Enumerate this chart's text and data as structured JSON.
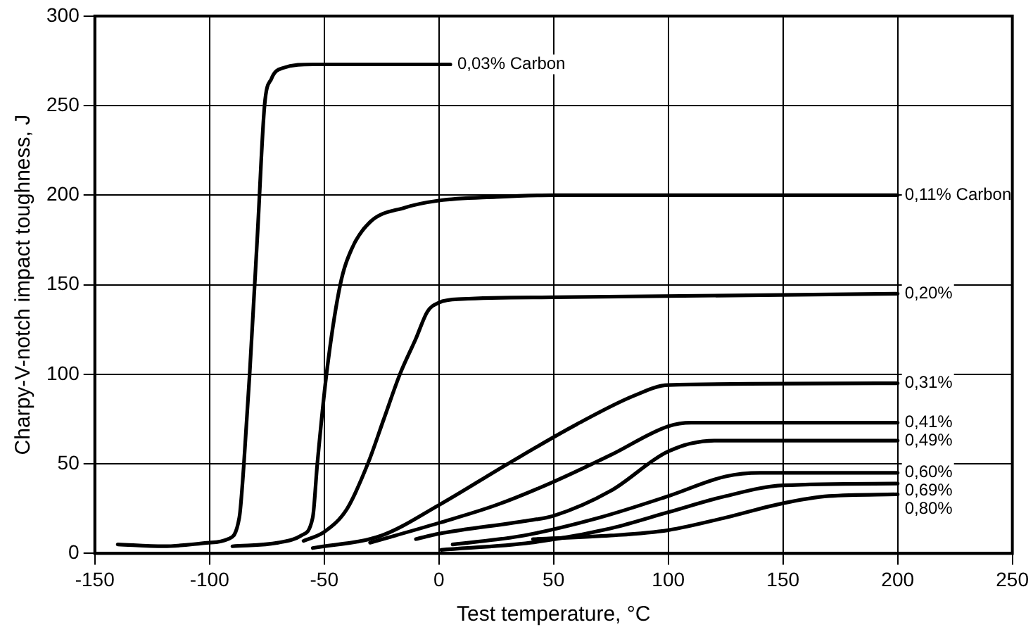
{
  "chart_data": {
    "type": "line",
    "xlabel": "Test temperature, °C",
    "ylabel": "Charpy-V-notch impact toughness, J",
    "xlim": [
      -150,
      250
    ],
    "xticks": [
      -150,
      -100,
      -50,
      0,
      50,
      100,
      150,
      200,
      250
    ],
    "ylim": [
      0,
      300
    ],
    "yticks": [
      0,
      50,
      100,
      150,
      200,
      250,
      300
    ],
    "grid": true,
    "legend": false,
    "marker": "none",
    "line_style": "solid",
    "series": [
      {
        "name": "0,03% Carbon",
        "color": "#000000",
        "x": [
          -140,
          -120,
          -100,
          -92,
          -87,
          -85,
          -82.5,
          -79,
          -76,
          -73,
          -68,
          -55,
          5
        ],
        "values": [
          5,
          4,
          6,
          8,
          20,
          50,
          100,
          180,
          250,
          265,
          271,
          273,
          273
        ]
      },
      {
        "name": "0,11% Carbon",
        "color": "#000000",
        "x": [
          -90,
          -70,
          -60,
          -55,
          -53,
          -49,
          -43,
          -38,
          -30,
          -15,
          0,
          25,
          50,
          200
        ],
        "values": [
          4,
          6,
          10,
          20,
          50,
          100,
          150,
          170,
          185,
          193,
          197,
          199,
          200,
          200
        ]
      },
      {
        "name": "0,20%",
        "color": "#000000",
        "x": [
          -59,
          -50,
          -40,
          -31,
          -24,
          -17,
          -10,
          -5,
          0,
          10,
          50,
          200
        ],
        "values": [
          7,
          12,
          25,
          50,
          75,
          100,
          120,
          135,
          140,
          142,
          143,
          145
        ]
      },
      {
        "name": "0,31%",
        "color": "#000000",
        "x": [
          -55,
          -25,
          0,
          30,
          60,
          85,
          100,
          200
        ],
        "values": [
          3,
          10,
          27,
          50,
          72,
          88,
          94,
          95
        ]
      },
      {
        "name": "0,41%",
        "color": "#000000",
        "x": [
          -30,
          0,
          25,
          50,
          75,
          100,
          110,
          200
        ],
        "values": [
          6,
          17,
          27,
          40,
          55,
          71,
          73,
          73
        ]
      },
      {
        "name": "0,49%",
        "color": "#000000",
        "x": [
          -10,
          0,
          37,
          50,
          75,
          100,
          120,
          200
        ],
        "values": [
          8,
          11,
          18,
          21,
          35,
          57,
          63,
          63
        ]
      },
      {
        "name": "0,60%",
        "color": "#000000",
        "x": [
          6,
          37,
          70,
          100,
          125,
          140,
          200
        ],
        "values": [
          5,
          10,
          20,
          32,
          43,
          45,
          45
        ]
      },
      {
        "name": "0,69%",
        "color": "#000000",
        "x": [
          1,
          40,
          75,
          100,
          125,
          150,
          200
        ],
        "values": [
          2,
          6,
          14,
          23,
          32,
          38,
          39
        ]
      },
      {
        "name": "0,80%",
        "color": "#000000",
        "x": [
          41,
          75,
          100,
          125,
          150,
          170,
          200
        ],
        "values": [
          8,
          10,
          13,
          20,
          28,
          32,
          33
        ]
      }
    ]
  }
}
